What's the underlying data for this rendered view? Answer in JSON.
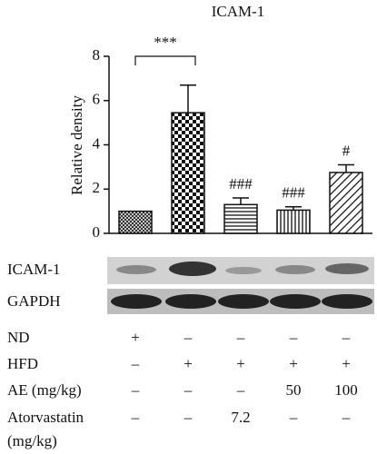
{
  "chart_data": {
    "type": "bar",
    "title": "ICAM-1",
    "y_label": "Relative density",
    "categories": [
      null,
      null,
      null,
      null,
      null
    ],
    "values": [
      1.0,
      5.45,
      1.3,
      1.05,
      2.75
    ],
    "errors": [
      0,
      1.25,
      0.3,
      0.15,
      0.35
    ],
    "patterns": [
      "crosshatch",
      "checker",
      "horizontal",
      "vertical",
      "diagonal"
    ],
    "annotations": [
      null,
      null,
      "###",
      "###",
      "#"
    ],
    "bracket_label": "***",
    "ylim": [
      0,
      8
    ],
    "yticks": [
      0,
      2,
      4,
      6,
      8
    ]
  },
  "blot": {
    "labels": [
      "ICAM-1",
      "GAPDH"
    ]
  },
  "conditions": {
    "rows": [
      {
        "label": "ND",
        "cells": [
          "+",
          "–",
          "–",
          "–",
          "–"
        ]
      },
      {
        "label": "HFD",
        "cells": [
          "–",
          "+",
          "+",
          "+",
          "+"
        ]
      },
      {
        "label": "AE (mg/kg)",
        "cells": [
          "–",
          "–",
          "–",
          "50",
          "100"
        ]
      },
      {
        "label": "Atorvastatin",
        "sublabel": "(mg/kg)",
        "cells": [
          "–",
          "–",
          "7.2",
          "–",
          "–"
        ]
      }
    ]
  }
}
